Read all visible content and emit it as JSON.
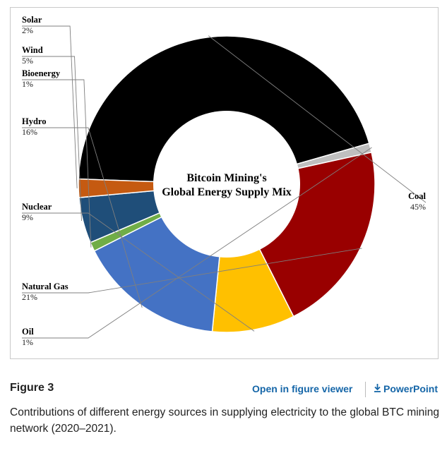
{
  "chart_data": {
    "type": "pie",
    "subtype": "donut",
    "title": "Bitcoin Mining's",
    "title_line2": "Global Energy Supply Mix",
    "slices": [
      {
        "name": "Coal",
        "value": 45,
        "pct_label": "45%",
        "color": "#000000"
      },
      {
        "name": "Oil",
        "value": 1,
        "pct_label": "1%",
        "color": "#bfbfbf"
      },
      {
        "name": "Natural Gas",
        "value": 21,
        "pct_label": "21%",
        "color": "#990000"
      },
      {
        "name": "Nuclear",
        "value": 9,
        "pct_label": "9%",
        "color": "#ffc000"
      },
      {
        "name": "Hydro",
        "value": 16,
        "pct_label": "16%",
        "color": "#4472c4"
      },
      {
        "name": "Bioenergy",
        "value": 1,
        "pct_label": "1%",
        "color": "#70ad47"
      },
      {
        "name": "Wind",
        "value": 5,
        "pct_label": "5%",
        "color": "#1f4e79"
      },
      {
        "name": "Solar",
        "value": 2,
        "pct_label": "2%",
        "color": "#c55a11"
      }
    ]
  },
  "figure": {
    "label": "Figure 3",
    "open_viewer": "Open in figure viewer",
    "powerpoint": "PowerPoint",
    "caption": "Contributions of different energy sources in supplying electricity to the global BTC mining network (2020–2021)."
  }
}
